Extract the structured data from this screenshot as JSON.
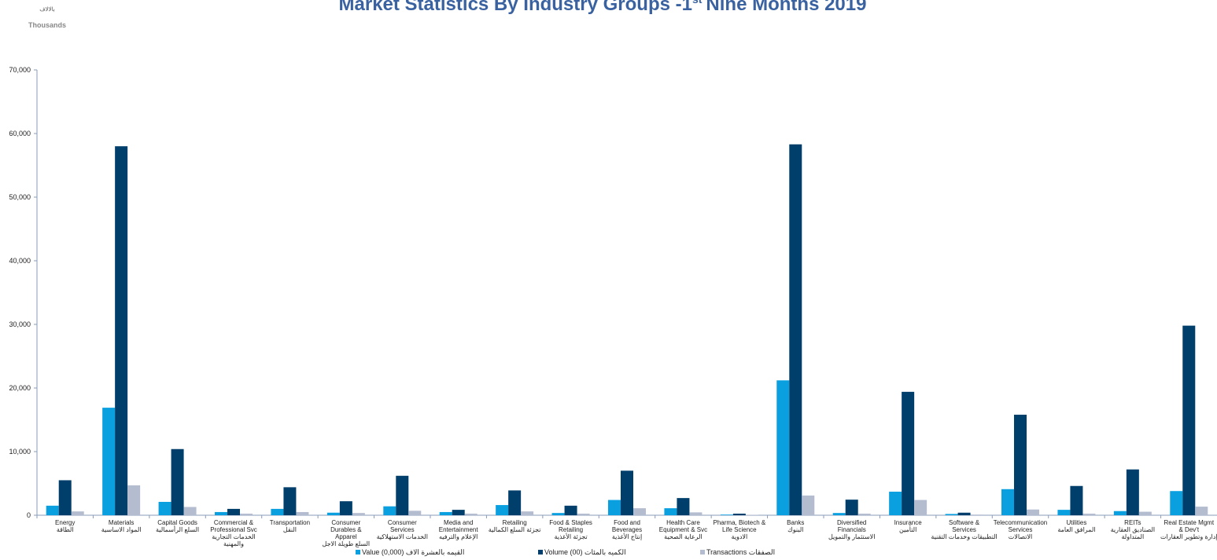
{
  "chart_data": {
    "type": "bar",
    "title": [
      "Market Statistics By Industry Groups -1",
      "st",
      "Nine Months 2019"
    ],
    "unit_labels": [
      "بالالاف",
      "Thousands"
    ],
    "categories": [
      [
        "Energy",
        "الطاقة"
      ],
      [
        "Materials",
        "المواد الاساسية"
      ],
      [
        "Capital Goods",
        "السلع الرأسمالية"
      ],
      [
        "Commercial &",
        "Professional Svc",
        "الخدمات التجارية",
        "والمهنية"
      ],
      [
        "Transportation",
        "النقل"
      ],
      [
        "Consumer",
        "Durables &",
        "Apparel",
        "السلع طويلة الاجل"
      ],
      [
        "Consumer",
        "Services",
        "الخدمات الاستهلاكية"
      ],
      [
        "Media and",
        "Entertainment",
        "الإعلام والترفيه"
      ],
      [
        "Retailing",
        "تجزئة السلع الكمالية"
      ],
      [
        "Food & Staples",
        "Retailing",
        "تجزئة الأغذية"
      ],
      [
        "Food and",
        "Beverages",
        "إنتاج الأغذية"
      ],
      [
        "Health Care",
        "Equipment & Svc",
        "الرعاية الصحية"
      ],
      [
        "Pharma, Biotech &",
        "Life Science",
        "الادوية"
      ],
      [
        "Banks",
        "البنوك"
      ],
      [
        "Diversified",
        "Financials",
        "الاستثمار والتمويل"
      ],
      [
        "Insurance",
        "التأمين"
      ],
      [
        "Software &",
        "Services",
        "التطبيقات وخدمات التقنية"
      ],
      [
        "Telecommunication",
        "Services",
        "الاتصالات"
      ],
      [
        "Utilities",
        "المرافق العامة"
      ],
      [
        "REITs",
        "الصناديق العقارية",
        "المتداولة"
      ],
      [
        "Real Estate Mgmt",
        "& Dev't",
        "إدارة وتطوير العقارات"
      ]
    ],
    "series": [
      {
        "name": "Value  (0,000) القيمه بالعشرة الاف",
        "color": "#0aa0e0",
        "values": [
          1500,
          16900,
          2100,
          500,
          1000,
          400,
          1400,
          500,
          1600,
          350,
          2400,
          1100,
          100,
          21200,
          350,
          3700,
          200,
          4100,
          850,
          650,
          3800
        ]
      },
      {
        "name": "Volume (00) الكميه بالمئات",
        "color": "#003f6b",
        "values": [
          5500,
          58000,
          10400,
          1000,
          4400,
          2200,
          6200,
          850,
          3900,
          1500,
          7000,
          2700,
          250,
          58300,
          2450,
          19400,
          400,
          15800,
          4600,
          7200,
          29800
        ]
      },
      {
        "name": "Transactions الصفقات",
        "color": "#b4bdd0",
        "values": [
          600,
          4700,
          1300,
          250,
          500,
          350,
          700,
          250,
          600,
          250,
          1100,
          450,
          50,
          3100,
          250,
          2400,
          100,
          900,
          250,
          550,
          1350
        ]
      }
    ],
    "ylim": [
      0,
      70000
    ],
    "yticks": [
      0,
      {
        "value": 10000,
        "label": "10,000"
      },
      {
        "value": 20000,
        "label": "20,000"
      },
      {
        "value": 30000,
        "label": "30,000"
      },
      {
        "value": 40000,
        "label": "40,000"
      },
      {
        "value": 50000,
        "label": "50,000"
      },
      {
        "value": 60000,
        "label": "60,000"
      },
      {
        "value": 70000,
        "label": "70,000"
      }
    ],
    "grid": false,
    "legend": "bottom"
  }
}
